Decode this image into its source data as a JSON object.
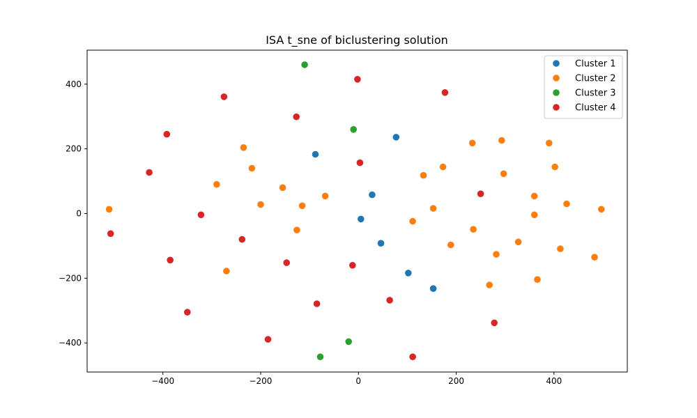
{
  "chart_data": {
    "type": "scatter",
    "title": "ISA t_sne of biclustering solution",
    "xlabel": "",
    "ylabel": "",
    "xlim": [
      -555,
      550
    ],
    "ylim": [
      -490,
      505
    ],
    "xticks": [
      -400,
      -200,
      0,
      200,
      400
    ],
    "yticks": [
      -400,
      -200,
      0,
      200,
      400
    ],
    "grid": false,
    "legend": "top-right",
    "series": [
      {
        "name": "Cluster 1",
        "color": "#1f77b4",
        "points": [
          [
            -88,
            183
          ],
          [
            77,
            236
          ],
          [
            28,
            58
          ],
          [
            5,
            -17
          ],
          [
            46,
            -92
          ],
          [
            102,
            -184
          ],
          [
            153,
            -232
          ]
        ]
      },
      {
        "name": "Cluster 2",
        "color": "#ff7f0e",
        "points": [
          [
            -510,
            13
          ],
          [
            -235,
            204
          ],
          [
            -218,
            140
          ],
          [
            -290,
            90
          ],
          [
            -200,
            28
          ],
          [
            -155,
            80
          ],
          [
            -115,
            24
          ],
          [
            -68,
            54
          ],
          [
            -126,
            -51
          ],
          [
            -270,
            -178
          ],
          [
            133,
            118
          ],
          [
            173,
            144
          ],
          [
            233,
            218
          ],
          [
            293,
            226
          ],
          [
            297,
            123
          ],
          [
            390,
            218
          ],
          [
            402,
            144
          ],
          [
            360,
            54
          ],
          [
            426,
            30
          ],
          [
            497,
            13
          ],
          [
            153,
            16
          ],
          [
            111,
            -24
          ],
          [
            189,
            -97
          ],
          [
            235,
            -49
          ],
          [
            360,
            -4
          ],
          [
            327,
            -88
          ],
          [
            282,
            -126
          ],
          [
            268,
            -221
          ],
          [
            366,
            -204
          ],
          [
            413,
            -109
          ],
          [
            483,
            -135
          ]
        ]
      },
      {
        "name": "Cluster 3",
        "color": "#2ca02c",
        "points": [
          [
            -110,
            460
          ],
          [
            -10,
            260
          ],
          [
            -78,
            -443
          ],
          [
            -20,
            -396
          ]
        ]
      },
      {
        "name": "Cluster 4",
        "color": "#d62728",
        "points": [
          [
            -2,
            415
          ],
          [
            177,
            374
          ],
          [
            -275,
            361
          ],
          [
            -127,
            299
          ],
          [
            -392,
            245
          ],
          [
            -428,
            127
          ],
          [
            3,
            157
          ],
          [
            -322,
            -4
          ],
          [
            -507,
            -62
          ],
          [
            -238,
            -80
          ],
          [
            -385,
            -144
          ],
          [
            -147,
            -152
          ],
          [
            -12,
            -160
          ],
          [
            250,
            61
          ],
          [
            -350,
            -305
          ],
          [
            -85,
            -279
          ],
          [
            64,
            -268
          ],
          [
            278,
            -338
          ],
          [
            -185,
            -389
          ],
          [
            111,
            -443
          ]
        ]
      }
    ]
  }
}
